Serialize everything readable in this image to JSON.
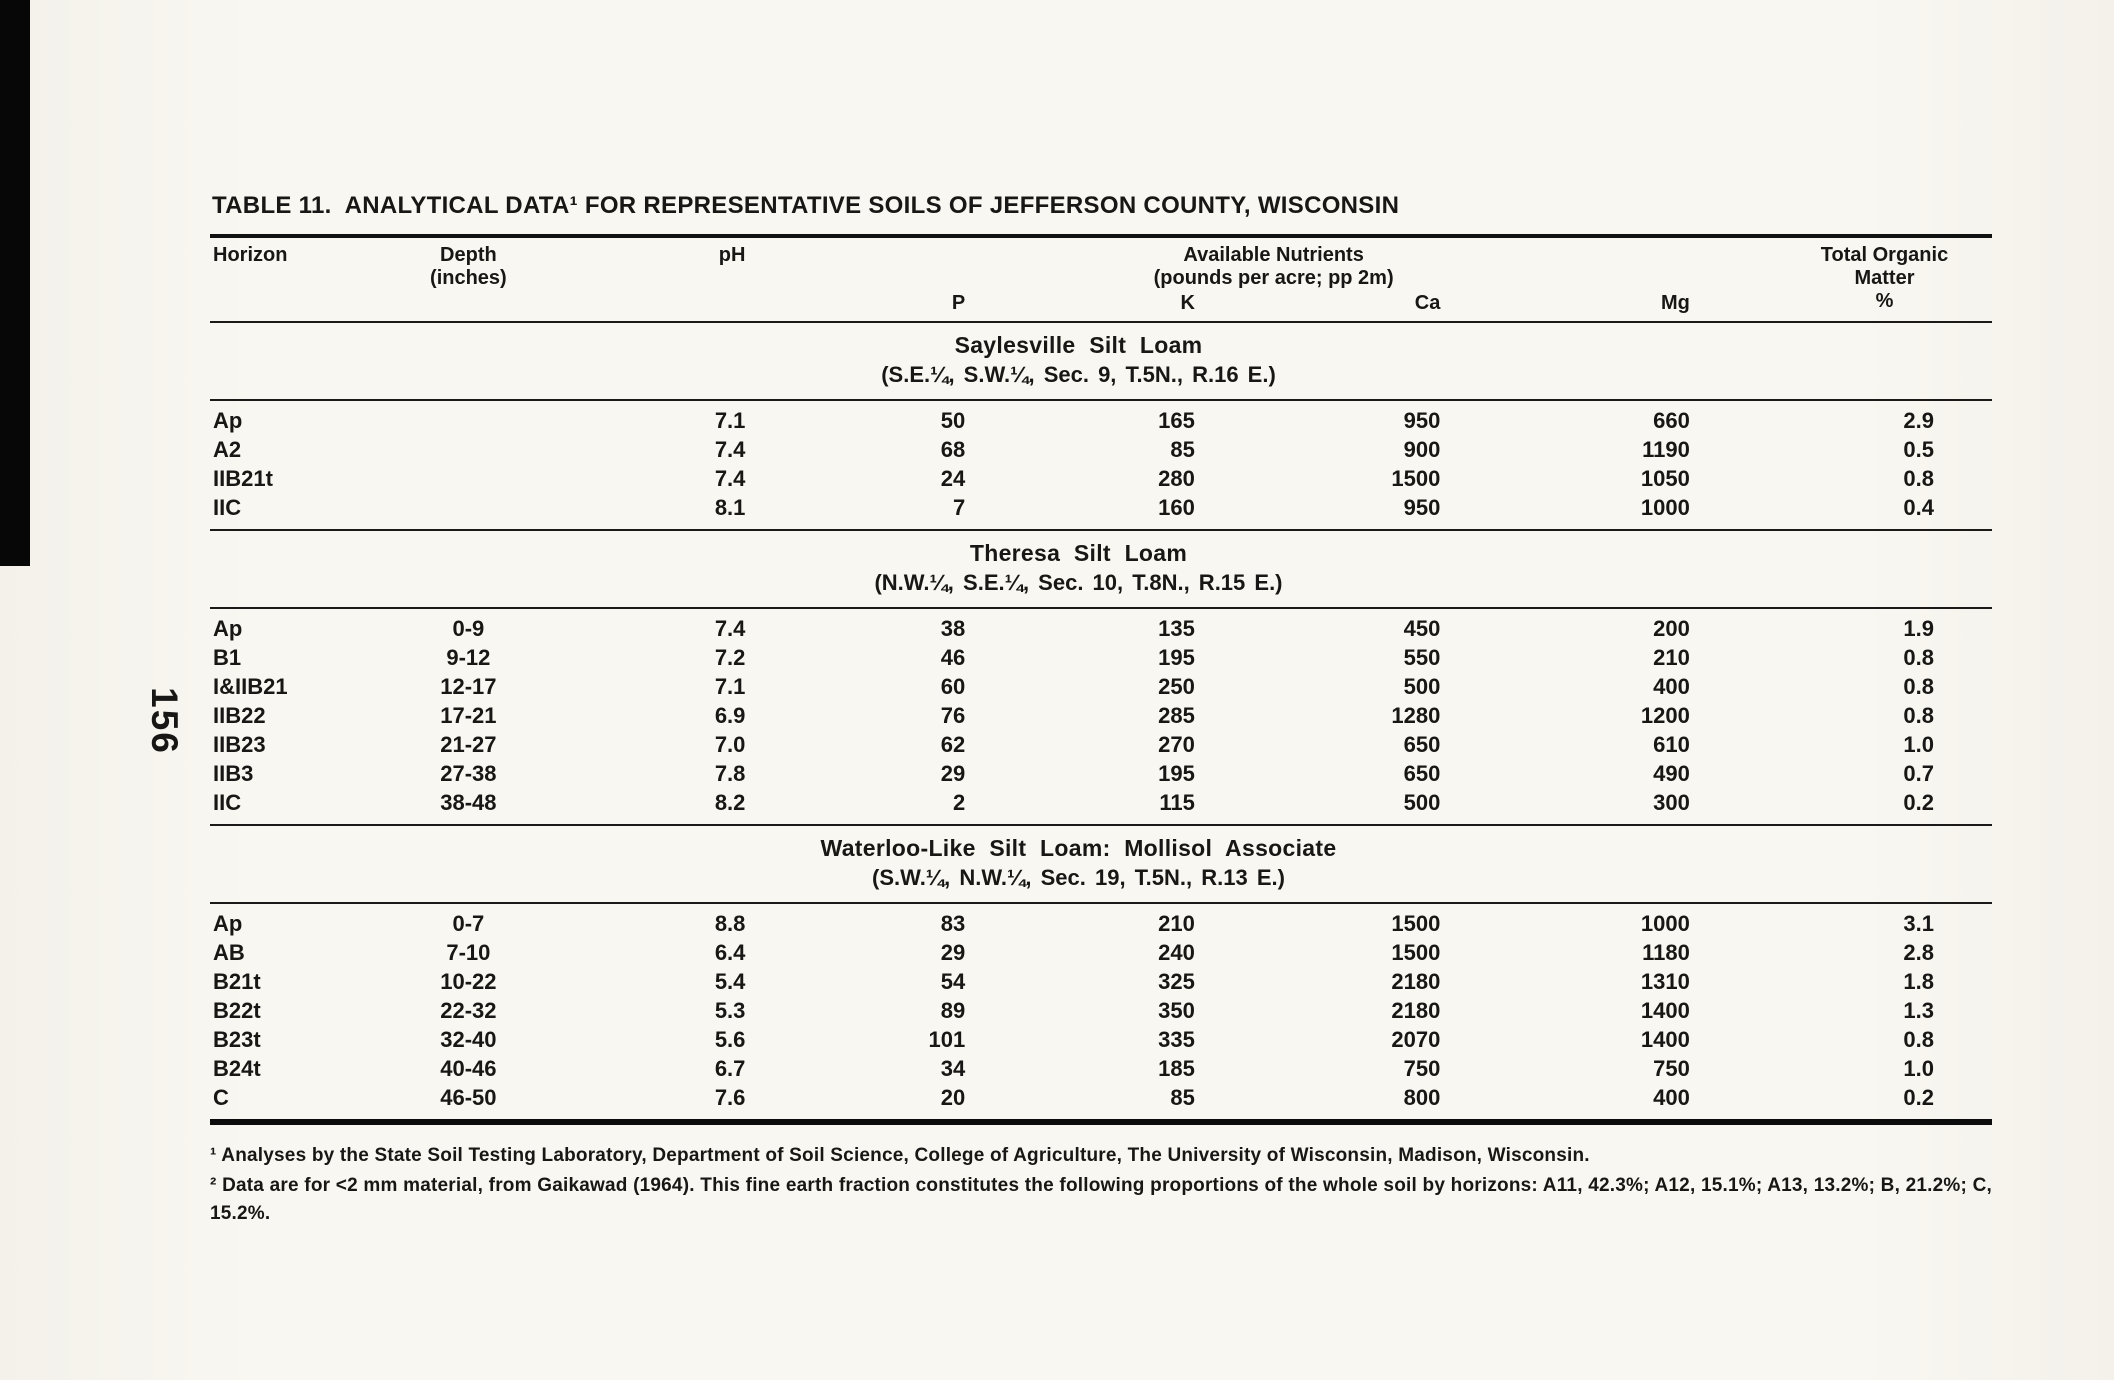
{
  "page": {
    "page_number": "156",
    "title": "TABLE 11.  ANALYTICAL DATA¹ FOR REPRESENTATIVE SOILS OF JEFFERSON COUNTY, WISCONSIN"
  },
  "table": {
    "headers": {
      "horizon": "Horizon",
      "depth_line1": "Depth",
      "depth_line2": "(inches)",
      "ph": "pH",
      "nutrients_line1": "Available Nutrients",
      "nutrients_line2": "(pounds per acre; pp 2m)",
      "p": "P",
      "k": "K",
      "ca": "Ca",
      "mg": "Mg",
      "om_line1": "Total Organic",
      "om_line2": "Matter",
      "om_line3": "%"
    },
    "sections": [
      {
        "name": "Saylesville Silt Loam",
        "location": "(S.E.¼, S.W.¼, Sec. 9, T.5N., R.16 E.)",
        "rows": [
          [
            "Ap",
            "",
            "7.1",
            "50",
            "165",
            "950",
            "660",
            "2.9"
          ],
          [
            "A2",
            "",
            "7.4",
            "68",
            "85",
            "900",
            "1190",
            "0.5"
          ],
          [
            "IIB21t",
            "",
            "7.4",
            "24",
            "280",
            "1500",
            "1050",
            "0.8"
          ],
          [
            "IIC",
            "",
            "8.1",
            "7",
            "160",
            "950",
            "1000",
            "0.4"
          ]
        ]
      },
      {
        "name": "Theresa Silt Loam",
        "location": "(N.W.¼, S.E.¼, Sec. 10, T.8N., R.15 E.)",
        "rows": [
          [
            "Ap",
            "0-9",
            "7.4",
            "38",
            "135",
            "450",
            "200",
            "1.9"
          ],
          [
            "B1",
            "9-12",
            "7.2",
            "46",
            "195",
            "550",
            "210",
            "0.8"
          ],
          [
            "I&IIB21",
            "12-17",
            "7.1",
            "60",
            "250",
            "500",
            "400",
            "0.8"
          ],
          [
            "IIB22",
            "17-21",
            "6.9",
            "76",
            "285",
            "1280",
            "1200",
            "0.8"
          ],
          [
            "IIB23",
            "21-27",
            "7.0",
            "62",
            "270",
            "650",
            "610",
            "1.0"
          ],
          [
            "IIB3",
            "27-38",
            "7.8",
            "29",
            "195",
            "650",
            "490",
            "0.7"
          ],
          [
            "IIC",
            "38-48",
            "8.2",
            "2",
            "115",
            "500",
            "300",
            "0.2"
          ]
        ]
      },
      {
        "name": "Waterloo-Like Silt Loam: Mollisol Associate",
        "location": "(S.W.¼, N.W.¼, Sec. 19, T.5N., R.13 E.)",
        "rows": [
          [
            "Ap",
            "0-7",
            "8.8",
            "83",
            "210",
            "1500",
            "1000",
            "3.1"
          ],
          [
            "AB",
            "7-10",
            "6.4",
            "29",
            "240",
            "1500",
            "1180",
            "2.8"
          ],
          [
            "B21t",
            "10-22",
            "5.4",
            "54",
            "325",
            "2180",
            "1310",
            "1.8"
          ],
          [
            "B22t",
            "22-32",
            "5.3",
            "89",
            "350",
            "2180",
            "1400",
            "1.3"
          ],
          [
            "B23t",
            "32-40",
            "5.6",
            "101",
            "335",
            "2070",
            "1400",
            "0.8"
          ],
          [
            "B24t",
            "40-46",
            "6.7",
            "34",
            "185",
            "750",
            "750",
            "1.0"
          ],
          [
            "C",
            "46-50",
            "7.6",
            "20",
            "85",
            "800",
            "400",
            "0.2"
          ]
        ]
      }
    ]
  },
  "footnotes": [
    "¹ Analyses by the State Soil Testing Laboratory, Department of Soil Science, College of Agriculture, The University of Wisconsin, Madison, Wisconsin.",
    "² Data are for <2 mm material, from Gaikawad (1964). This fine earth fraction constitutes the following proportions of the whole soil by horizons: A11, 42.3%; A12, 15.1%; A13, 13.2%; B, 21.2%; C, 15.2%."
  ]
}
